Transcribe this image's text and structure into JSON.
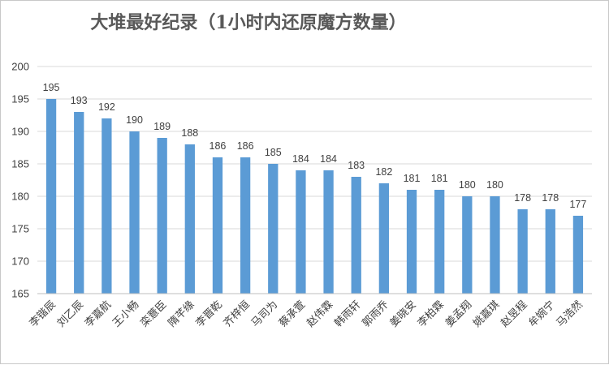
{
  "chart_data": {
    "type": "bar",
    "title": "大堆最好纪录（1小时内还原魔方数量）",
    "categories": [
      "李锴辰",
      "刘乙辰",
      "李嘉航",
      "王小畅",
      "栾薏臣",
      "隋芊缘",
      "李晋乾",
      "齐梓恒",
      "马司为",
      "蔡承萱",
      "赵伟霖",
      "韩雨轩",
      "郭雨乔",
      "姜晓安",
      "李柏霖",
      "姜孟翔",
      "姚嘉琪",
      "赵昱程",
      "牟婉宁",
      "马浩然"
    ],
    "values": [
      195,
      193,
      192,
      190,
      189,
      188,
      186,
      186,
      185,
      184,
      184,
      183,
      182,
      181,
      181,
      180,
      180,
      178,
      178,
      177
    ],
    "ylim": [
      165,
      200
    ],
    "yticks": [
      165,
      170,
      175,
      180,
      185,
      190,
      195,
      200
    ],
    "grid": true,
    "bar_color": "#5b9bd5"
  }
}
